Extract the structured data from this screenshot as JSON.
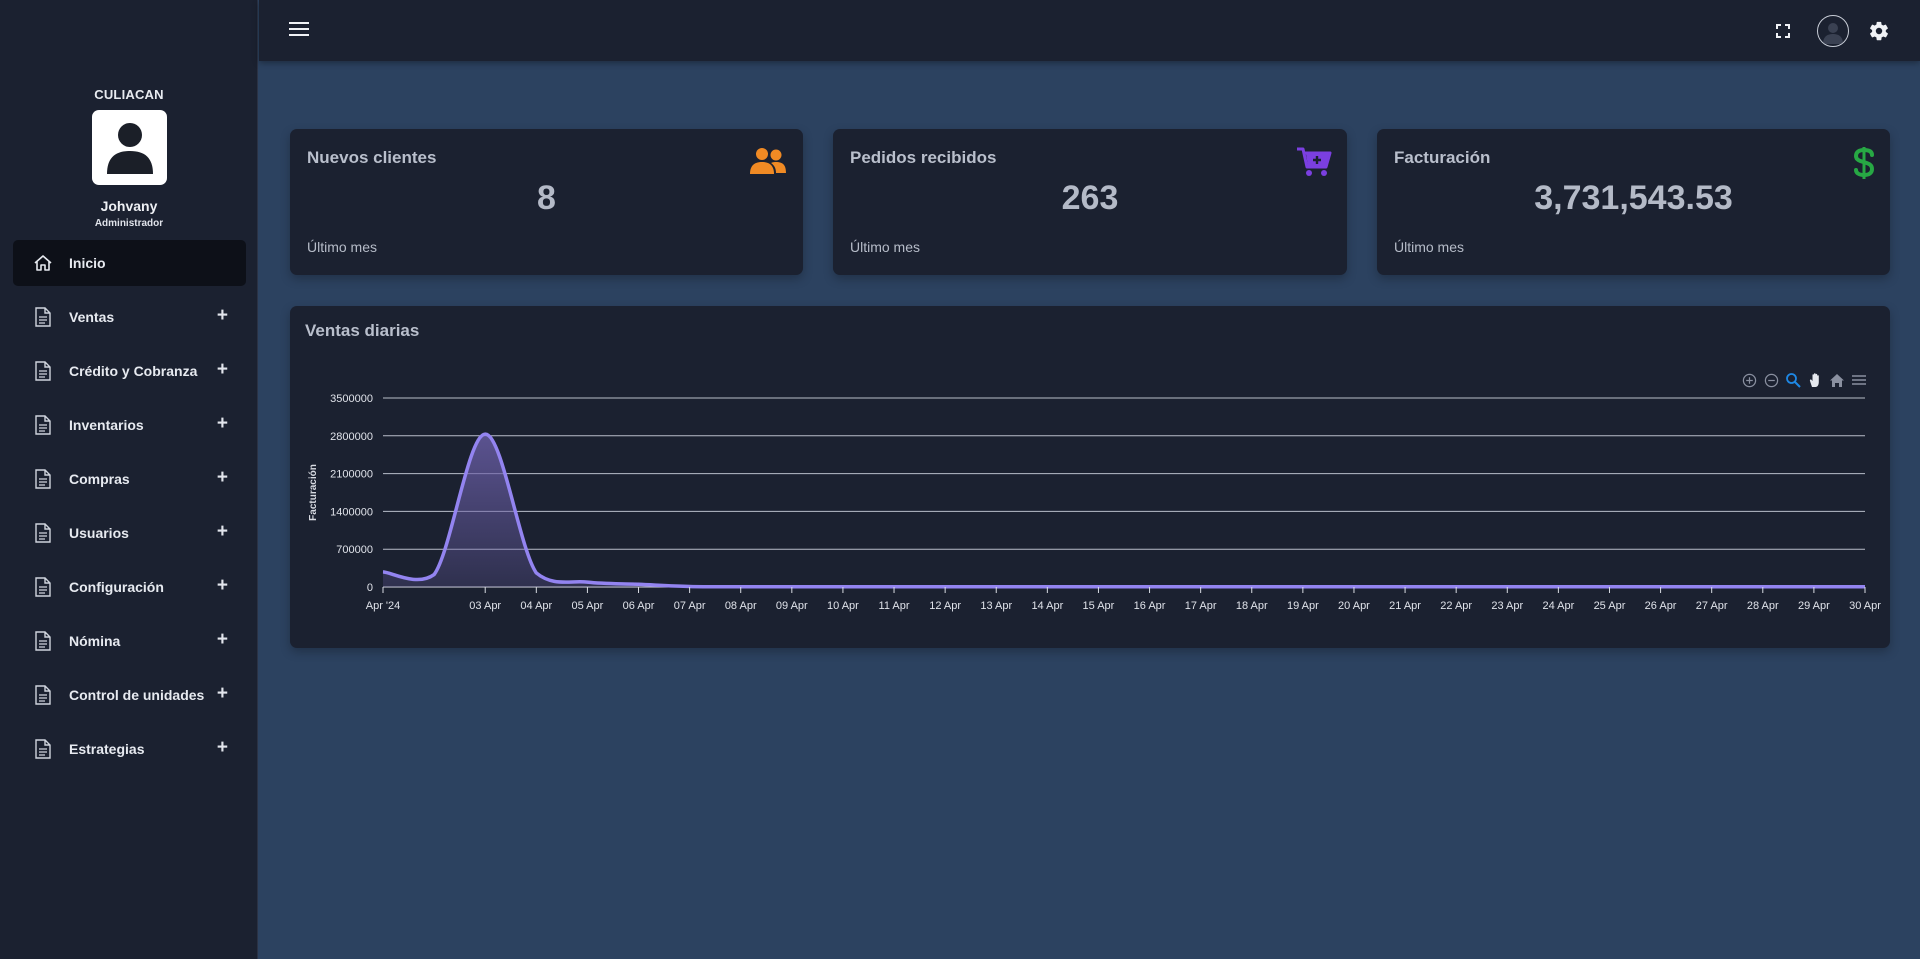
{
  "sidebar": {
    "branch": "CULIACAN",
    "user_name": "Johvany",
    "user_role": "Administrador",
    "items": [
      {
        "label": "Inicio",
        "icon": "home-icon",
        "active": true,
        "expandable": false
      },
      {
        "label": "Ventas",
        "icon": "document-icon",
        "expandable": true
      },
      {
        "label": "Crédito y Cobranza",
        "icon": "document-icon",
        "expandable": true
      },
      {
        "label": "Inventarios",
        "icon": "document-icon",
        "expandable": true
      },
      {
        "label": "Compras",
        "icon": "document-icon",
        "expandable": true
      },
      {
        "label": "Usuarios",
        "icon": "document-icon",
        "expandable": true
      },
      {
        "label": "Configuración",
        "icon": "document-icon",
        "expandable": true
      },
      {
        "label": "Nómina",
        "icon": "document-icon",
        "expandable": true
      },
      {
        "label": "Control de unidades",
        "icon": "document-icon",
        "expandable": true
      },
      {
        "label": "Estrategias",
        "icon": "document-icon",
        "expandable": true
      }
    ],
    "expand_symbol": "+"
  },
  "topbar": {
    "menu_icon": "hamburger-icon",
    "fullscreen_icon": "fullscreen-icon",
    "user_icon": "user-avatar-icon",
    "settings_icon": "gear-icon"
  },
  "cards": [
    {
      "title": "Nuevos clientes",
      "value": "8",
      "footer": "Último mes",
      "icon": "users-icon",
      "icon_color": "#f08a24"
    },
    {
      "title": "Pedidos recibidos",
      "value": "263",
      "footer": "Último mes",
      "icon": "cart-plus-icon",
      "icon_color": "#7b3fe0"
    },
    {
      "title": "Facturación",
      "value": "3,731,543.53",
      "footer": "Último mes",
      "icon": "dollar-icon",
      "icon_color": "#27a844"
    }
  ],
  "chart_panel": {
    "title": "Ventas diarias",
    "toolbar": [
      "zoom-in-icon",
      "zoom-out-icon",
      "zoom-select-icon",
      "pan-icon",
      "reset-home-icon",
      "menu-icon"
    ]
  },
  "chart_data": {
    "type": "area",
    "title": "Ventas diarias",
    "ylabel": "Facturación",
    "xlabel": "",
    "ylim": [
      0,
      3500000
    ],
    "yticks": [
      0,
      700000,
      1400000,
      2100000,
      2800000,
      3500000
    ],
    "grid": true,
    "line_color": "#9384f0",
    "x_tick_labels": [
      "Apr '24",
      "03 Apr",
      "04 Apr",
      "05 Apr",
      "06 Apr",
      "07 Apr",
      "08 Apr",
      "09 Apr",
      "10 Apr",
      "11 Apr",
      "12 Apr",
      "13 Apr",
      "14 Apr",
      "15 Apr",
      "16 Apr",
      "17 Apr",
      "18 Apr",
      "19 Apr",
      "20 Apr",
      "21 Apr",
      "22 Apr",
      "23 Apr",
      "24 Apr",
      "25 Apr",
      "26 Apr",
      "27 Apr",
      "28 Apr",
      "29 Apr",
      "30 Apr"
    ],
    "series": [
      {
        "values": [
          {
            "x": "2024-04-01",
            "y": 280000
          },
          {
            "x": "2024-04-02",
            "y": 230000
          },
          {
            "x": "2024-04-03",
            "y": 2830000
          },
          {
            "x": "2024-04-04",
            "y": 260000
          },
          {
            "x": "2024-04-05",
            "y": 90000
          },
          {
            "x": "2024-04-06",
            "y": 50000
          },
          {
            "x": "2024-04-07",
            "y": 10000
          },
          {
            "x": "2024-04-08",
            "y": 5000
          },
          {
            "x": "2024-04-09",
            "y": 5000
          },
          {
            "x": "2024-04-10",
            "y": 5000
          },
          {
            "x": "2024-04-11",
            "y": 5000
          },
          {
            "x": "2024-04-12",
            "y": 5000
          },
          {
            "x": "2024-04-13",
            "y": 5000
          },
          {
            "x": "2024-04-14",
            "y": 5000
          },
          {
            "x": "2024-04-15",
            "y": 5000
          },
          {
            "x": "2024-04-16",
            "y": 5000
          },
          {
            "x": "2024-04-17",
            "y": 5000
          },
          {
            "x": "2024-04-18",
            "y": 5000
          },
          {
            "x": "2024-04-19",
            "y": 5000
          },
          {
            "x": "2024-04-20",
            "y": 5000
          },
          {
            "x": "2024-04-21",
            "y": 5000
          },
          {
            "x": "2024-04-22",
            "y": 5000
          },
          {
            "x": "2024-04-23",
            "y": 5000
          },
          {
            "x": "2024-04-24",
            "y": 5000
          },
          {
            "x": "2024-04-25",
            "y": 5000
          },
          {
            "x": "2024-04-26",
            "y": 5000
          },
          {
            "x": "2024-04-27",
            "y": 5000
          },
          {
            "x": "2024-04-28",
            "y": 5000
          },
          {
            "x": "2024-04-29",
            "y": 5000
          },
          {
            "x": "2024-04-30",
            "y": 5000
          }
        ]
      }
    ]
  }
}
